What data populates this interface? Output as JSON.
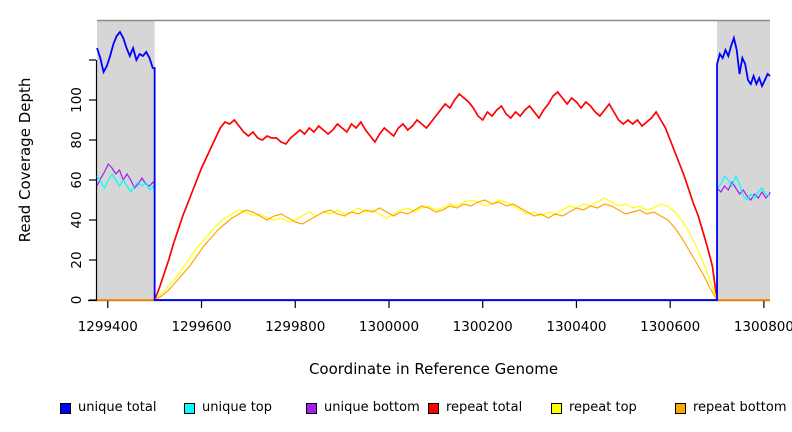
{
  "legend": {
    "items": [
      {
        "label": "unique total",
        "color": "#0000FF"
      },
      {
        "label": "unique top",
        "color": "#00FFFF"
      },
      {
        "label": "unique bottom",
        "color": "#A020F0"
      },
      {
        "label": "repeat total",
        "color": "#FF0000"
      },
      {
        "label": "repeat top",
        "color": "#FFFF00"
      },
      {
        "label": "repeat bottom",
        "color": "#FFA500"
      }
    ]
  },
  "chart_data": {
    "type": "line",
    "title": "",
    "xlabel": "Coordinate in Reference Genome",
    "ylabel": "Read Coverage Depth",
    "xlim": [
      1299377,
      1300813
    ],
    "ylim": [
      0,
      140
    ],
    "grid": false,
    "legend_position": "bottom",
    "xticks": [
      1299400,
      1299600,
      1299800,
      1300000,
      1300200,
      1300400,
      1300600,
      1300800
    ],
    "xtick_labels": [
      "1299400",
      "1299600",
      "1299800",
      "1300000",
      "1300200",
      "1300400",
      "1300600",
      "1300800"
    ],
    "yticks": [
      0,
      20,
      40,
      60,
      80,
      100,
      120
    ],
    "ytick_labels": [
      "0",
      "20",
      "40",
      "60",
      "80",
      "100",
      ""
    ],
    "band_color": "#D6D6D6",
    "frame_top_color": "#8C8C8C",
    "axis_color": "#000000",
    "shaded_regions": [
      {
        "from": 1299377,
        "to": 1299500
      },
      {
        "from": 1300700,
        "to": 1300813
      }
    ],
    "draw_order": [
      3,
      4,
      5,
      2,
      1,
      0
    ],
    "series": [
      {
        "name": "unique total",
        "color": "#0000FF",
        "lw": 1.8,
        "segments": [
          {
            "x0": 1299377,
            "dx": 7,
            "v": [
              126,
              121,
              114,
              117,
              122,
              128,
              132,
              134,
              131,
              126,
              122,
              126,
              120,
              123,
              122,
              124,
              121,
              116
            ]
          },
          {
            "pts": [
              [
                1299500,
                116
              ],
              [
                1299500,
                0
              ],
              [
                1300700,
                0
              ],
              [
                1300700,
                118
              ]
            ]
          },
          {
            "x0": 1300700,
            "dx": 6,
            "v": [
              118,
              123,
              121,
              125,
              122,
              127,
              131,
              125,
              113,
              121,
              118,
              110,
              108,
              112,
              108,
              111,
              107,
              110,
              113
            ]
          },
          {
            "pts": [
              [
                1300813,
                112
              ]
            ]
          }
        ]
      },
      {
        "name": "unique top",
        "color": "#00FFFF",
        "lw": 1.2,
        "segments": [
          {
            "x0": 1299377,
            "dx": 8,
            "v": [
              62,
              59,
              56,
              60,
              63,
              60,
              57,
              60,
              57,
              54,
              57,
              59,
              57,
              59,
              55,
              57
            ]
          },
          {
            "pts": [
              [
                1299500,
                53
              ],
              [
                1299500,
                0
              ],
              [
                1300700,
                0
              ],
              [
                1300700,
                55
              ]
            ]
          },
          {
            "x0": 1300700,
            "dx": 8,
            "v": [
              55,
              58,
              62,
              60,
              57,
              62,
              58,
              52,
              50,
              53,
              51,
              54,
              56,
              53,
              52
            ]
          },
          {
            "pts": [
              [
                1300813,
                52
              ]
            ]
          }
        ]
      },
      {
        "name": "unique bottom",
        "color": "#A020F0",
        "lw": 1.2,
        "segments": [
          {
            "x0": 1299377,
            "dx": 8,
            "v": [
              57,
              61,
              64,
              68,
              66,
              63,
              65,
              60,
              63,
              60,
              56,
              58,
              61,
              58,
              57,
              59
            ]
          },
          {
            "pts": [
              [
                1299500,
                58
              ],
              [
                1299500,
                0
              ],
              [
                1300700,
                0
              ],
              [
                1300700,
                56
              ]
            ]
          },
          {
            "x0": 1300700,
            "dx": 8,
            "v": [
              56,
              54,
              57,
              55,
              59,
              56,
              53,
              55,
              52,
              50,
              53,
              51,
              54,
              51,
              53
            ]
          },
          {
            "pts": [
              [
                1300813,
                54
              ]
            ]
          }
        ]
      },
      {
        "name": "repeat total",
        "color": "#FF0000",
        "lw": 1.7,
        "segments": [
          {
            "pts": [
              [
                1299377,
                0
              ]
            ]
          },
          {
            "x0": 1299500,
            "dx": 10,
            "v": [
              0,
              6,
              13,
              20,
              28,
              35,
              42,
              48,
              54,
              60,
              66,
              71,
              76,
              81,
              86,
              89,
              88,
              90,
              87,
              84,
              82,
              84,
              81,
              80,
              82,
              81,
              81,
              79,
              78,
              81,
              83,
              85,
              83,
              86,
              84,
              87,
              85,
              83,
              85,
              88,
              86,
              84,
              88,
              86,
              89,
              85,
              82,
              79,
              83,
              86,
              84,
              82,
              86,
              88,
              85,
              87,
              90,
              88,
              86,
              89,
              92,
              95,
              98,
              96,
              100,
              103,
              101,
              99,
              96,
              92,
              90,
              94,
              92,
              95,
              97,
              93,
              91,
              94,
              92,
              95,
              97,
              94,
              91,
              95,
              98,
              102,
              104,
              101,
              98,
              101,
              99,
              96,
              99,
              97,
              94,
              92,
              95,
              98,
              94,
              90,
              88,
              90,
              88,
              90,
              87,
              89,
              91,
              94,
              90,
              86,
              80,
              74,
              68,
              62,
              55,
              48,
              42,
              34,
              26,
              17,
              0
            ]
          },
          {
            "pts": [
              [
                1300813,
                0
              ]
            ]
          }
        ]
      },
      {
        "name": "repeat top",
        "color": "#FFFF00",
        "lw": 1.2,
        "segments": [
          {
            "pts": [
              [
                1299377,
                0
              ]
            ]
          },
          {
            "x0": 1299500,
            "dx": 15,
            "v": [
              0,
              3,
              7,
              11,
              16,
              21,
              26,
              30,
              34,
              38,
              41,
              43,
              45,
              44,
              42,
              43,
              41,
              40,
              41,
              39,
              40,
              42,
              44,
              42,
              44,
              43,
              45,
              43,
              44,
              46,
              44,
              45,
              43,
              41,
              43,
              45,
              46,
              44,
              46,
              47,
              45,
              46,
              48,
              47,
              49,
              50,
              49,
              47,
              48,
              50,
              49,
              47,
              45,
              43,
              44,
              42,
              44,
              43,
              45,
              47,
              46,
              48,
              47,
              49,
              51,
              49,
              47,
              48,
              46,
              47,
              45,
              46,
              48,
              47,
              44,
              40,
              34,
              27,
              19,
              10,
              0
            ]
          },
          {
            "pts": [
              [
                1300813,
                0
              ]
            ]
          }
        ]
      },
      {
        "name": "repeat bottom",
        "color": "#FFA500",
        "lw": 1.2,
        "segments": [
          {
            "pts": [
              [
                1299377,
                0
              ]
            ]
          },
          {
            "x0": 1299500,
            "dx": 15,
            "v": [
              0,
              2,
              5,
              9,
              13,
              17,
              22,
              27,
              31,
              35,
              38,
              41,
              43,
              45,
              44,
              42,
              40,
              42,
              43,
              41,
              39,
              38,
              40,
              42,
              44,
              45,
              43,
              42,
              44,
              43,
              45,
              44,
              46,
              44,
              42,
              44,
              43,
              45,
              47,
              46,
              44,
              45,
              47,
              46,
              48,
              47,
              49,
              50,
              48,
              49,
              47,
              48,
              46,
              44,
              42,
              43,
              41,
              43,
              42,
              44,
              46,
              45,
              47,
              46,
              48,
              47,
              45,
              43,
              44,
              45,
              43,
              44,
              42,
              40,
              36,
              31,
              25,
              19,
              13,
              6,
              0
            ]
          },
          {
            "pts": [
              [
                1300813,
                0
              ]
            ]
          }
        ]
      }
    ]
  }
}
